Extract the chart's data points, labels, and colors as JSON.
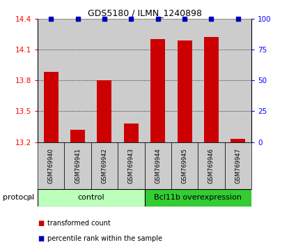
{
  "title": "GDS5180 / ILMN_1240898",
  "samples": [
    "GSM769940",
    "GSM769941",
    "GSM769942",
    "GSM769943",
    "GSM769944",
    "GSM769945",
    "GSM769946",
    "GSM769947"
  ],
  "red_values": [
    13.88,
    13.32,
    13.8,
    13.38,
    14.2,
    14.19,
    14.22,
    13.23
  ],
  "ylim_left": [
    13.2,
    14.4
  ],
  "ylim_right": [
    0,
    100
  ],
  "yticks_left": [
    13.2,
    13.5,
    13.8,
    14.1,
    14.4
  ],
  "yticks_right": [
    0,
    25,
    50,
    75,
    100
  ],
  "control_label": "control",
  "overexpression_label": "Bcl11b overexpression",
  "protocol_label": "protocol",
  "legend_red": "transformed count",
  "legend_blue": "percentile rank within the sample",
  "bar_color": "#cc0000",
  "blue_color": "#0000bb",
  "control_bg": "#bbffbb",
  "overexpression_bg": "#33cc33",
  "sample_bg": "#cccccc",
  "plot_bg": "#ffffff",
  "bar_width": 0.55,
  "title_fontsize": 9,
  "tick_fontsize": 7.5,
  "label_fontsize": 7,
  "sample_fontsize": 6.0,
  "proto_fontsize": 8
}
